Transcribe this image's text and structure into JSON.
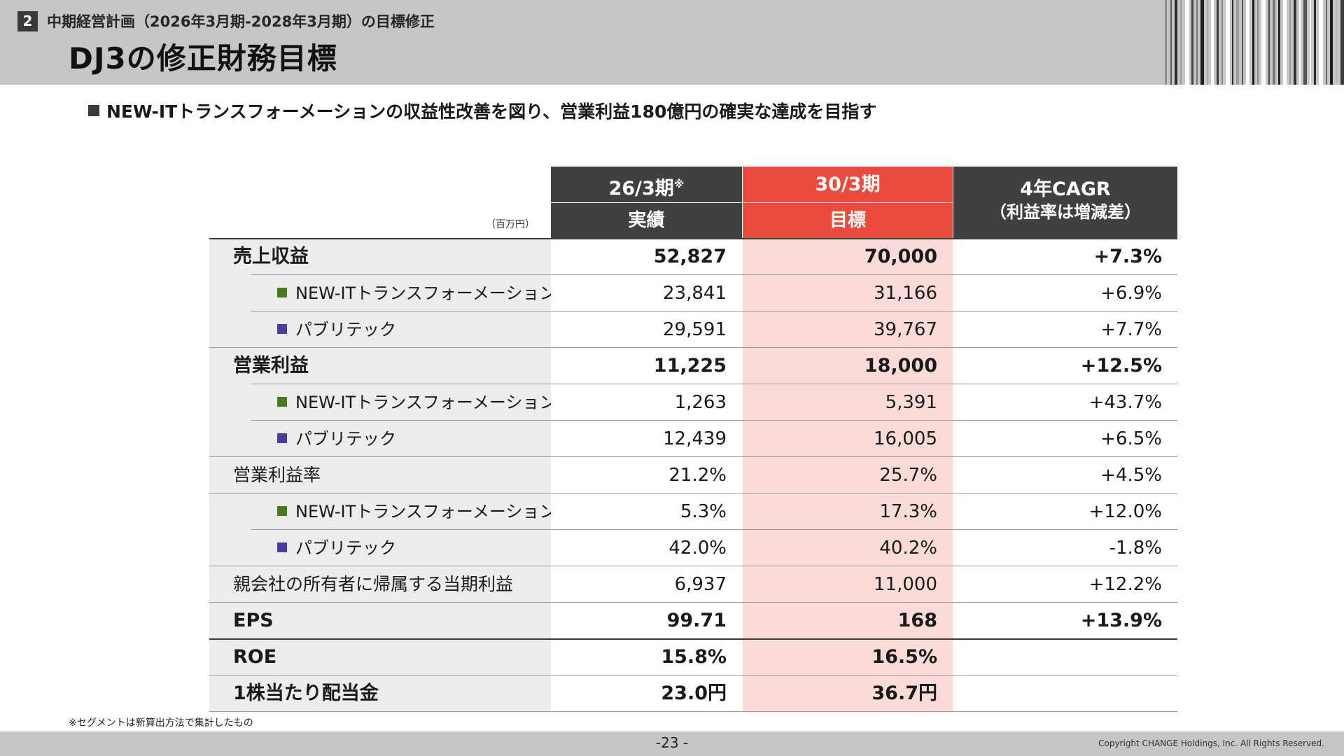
{
  "header": {
    "section_number": "2",
    "section_title": "中期経営計画（2026年3月期-2028年3月期）の目標修正",
    "page_title": "DJ3の修正財務目標"
  },
  "lead": "NEW-ITトランスフォーメーションの収益性改善を図り、営業利益180億円の確実な達成を目指す",
  "table": {
    "unit": "（百万円）",
    "col1_top": "26/3期",
    "col1_note": "※",
    "col1_bottom": "実績",
    "col2_top": "30/3期",
    "col2_bottom": "目標",
    "col3_line1": "4年CAGR",
    "col3_line2": "（利益率は増減差）",
    "rows": [
      {
        "label": "売上収益",
        "v1": "52,827",
        "v2": "70,000",
        "v3": "+7.3%"
      },
      {
        "label": "NEW-ITトランスフォーメーション",
        "v1": "23,841",
        "v2": "31,166",
        "v3": "+6.9%"
      },
      {
        "label": "パブリテック",
        "v1": "29,591",
        "v2": "39,767",
        "v3": "+7.7%"
      },
      {
        "label": "営業利益",
        "v1": "11,225",
        "v2": "18,000",
        "v3": "+12.5%"
      },
      {
        "label": "NEW-ITトランスフォーメーション",
        "v1": "1,263",
        "v2": "5,391",
        "v3": "+43.7%"
      },
      {
        "label": "パブリテック",
        "v1": "12,439",
        "v2": "16,005",
        "v3": "+6.5%"
      },
      {
        "label": "営業利益率",
        "v1": "21.2%",
        "v2": "25.7%",
        "v3": "+4.5%"
      },
      {
        "label": "NEW-ITトランスフォーメーション",
        "v1": "5.3%",
        "v2": "17.3%",
        "v3": "+12.0%"
      },
      {
        "label": "パブリテック",
        "v1": "42.0%",
        "v2": "40.2%",
        "v3": "-1.8%"
      },
      {
        "label": "親会社の所有者に帰属する当期利益",
        "v1": "6,937",
        "v2": "11,000",
        "v3": "+12.2%"
      },
      {
        "label": "EPS",
        "v1": "99.71",
        "v2": "168",
        "v3": "+13.9%"
      },
      {
        "label": "ROE",
        "v1": "15.8%",
        "v2": "16.5%",
        "v3": ""
      },
      {
        "label": "1株当たり配当金",
        "v1": "23.0円",
        "v2": "36.7円",
        "v3": ""
      }
    ]
  },
  "colors": {
    "dark_header": "#404040",
    "accent_red": "#e94b3c",
    "target_fill": "#fbdbd7",
    "segment_newit": "#4a7a1e",
    "segment_publitech": "#4b3aa0"
  },
  "footnote": "※セグメントは新算出方法で集計したもの",
  "page_number": "-23 -",
  "copyright": "Copyright CHANGE Holdings, Inc. All Rights Reserved."
}
